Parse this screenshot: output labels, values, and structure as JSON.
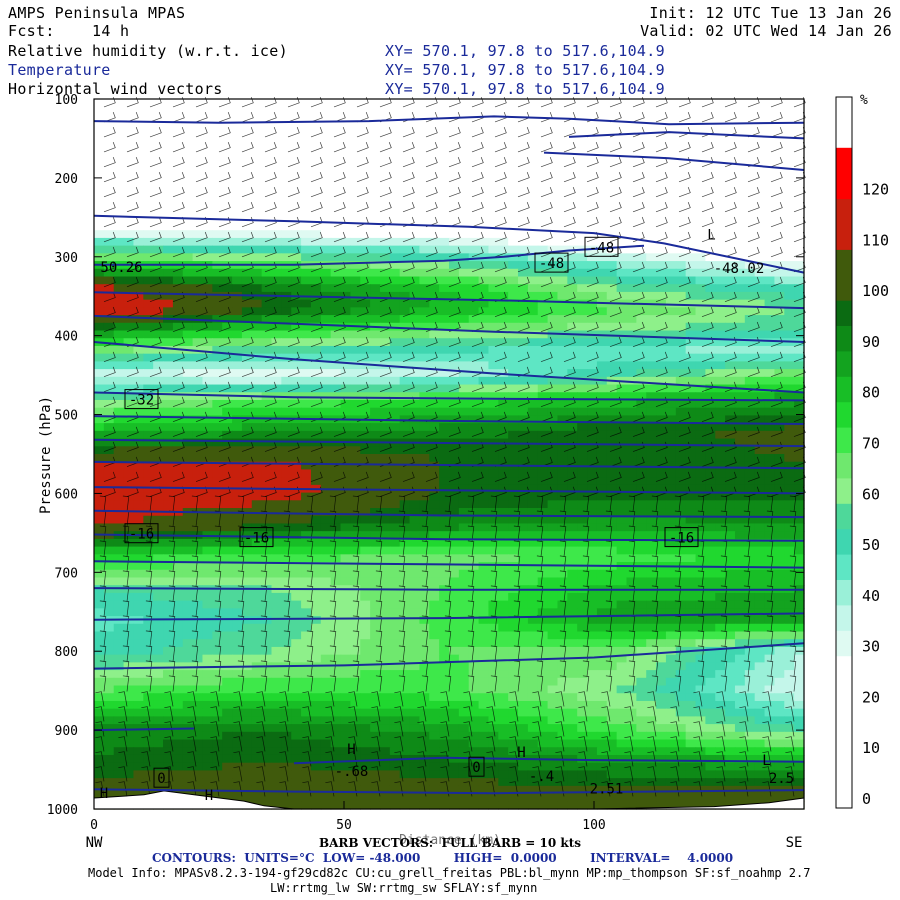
{
  "header": {
    "model": "AMPS Peninsula MPAS",
    "fcst_label": "Fcst:",
    "fcst_value": "14 h",
    "init": "Init: 12 UTC Tue 13 Jan 26",
    "valid": "Valid: 02 UTC Wed 14 Jan 26",
    "fields": [
      {
        "name": "Relative humidity (w.r.t. ice)",
        "xy": "XY= 570.1, 97.8 to 517.6,104.9"
      },
      {
        "name": "Temperature",
        "xy": "XY= 570.1, 97.8 to 517.6,104.9"
      },
      {
        "name": "Horizontal wind vectors",
        "xy": "XY= 570.1, 97.8 to 517.6,104.9"
      }
    ]
  },
  "colors": {
    "temperature_contour": "#1a2a9a",
    "barb": "#000000",
    "terrain": "#ffffff"
  },
  "chart_data": {
    "type": "heatmap",
    "ylabel": "Pressure (hPa)",
    "xlabel": "Distance (km)",
    "xlim": [
      0,
      142
    ],
    "ylim": [
      1000,
      100
    ],
    "x_ticks": [
      "0",
      "50",
      "100"
    ],
    "x_end_labels": {
      "left": "NW",
      "right": "SE"
    },
    "y_ticks": [
      "100",
      "200",
      "300",
      "400",
      "500",
      "600",
      "700",
      "800",
      "900",
      "1000"
    ],
    "colorbar": {
      "unit": "%",
      "labels": [
        "120",
        "110",
        "100",
        "90",
        "80",
        "70",
        "60",
        "50",
        "40",
        "30",
        "20",
        "10",
        "0"
      ],
      "bins": [
        {
          "range": [
            120,
            130
          ],
          "color": "#ff0000"
        },
        {
          "range": [
            110,
            120
          ],
          "color": "#c8200d"
        },
        {
          "range": [
            100,
            110
          ],
          "color": "#405a0c"
        },
        {
          "range": [
            95,
            100
          ],
          "color": "#0b6b12"
        },
        {
          "range": [
            90,
            95
          ],
          "color": "#0e8a17"
        },
        {
          "range": [
            85,
            90
          ],
          "color": "#13a31f"
        },
        {
          "range": [
            80,
            85
          ],
          "color": "#18be26"
        },
        {
          "range": [
            75,
            80
          ],
          "color": "#20d82f"
        },
        {
          "range": [
            70,
            75
          ],
          "color": "#3ee84a"
        },
        {
          "range": [
            65,
            70
          ],
          "color": "#6fe86e"
        },
        {
          "range": [
            60,
            65
          ],
          "color": "#8ef08a"
        },
        {
          "range": [
            55,
            60
          ],
          "color": "#4ed89a"
        },
        {
          "range": [
            50,
            55
          ],
          "color": "#3fd6b0"
        },
        {
          "range": [
            45,
            50
          ],
          "color": "#5ee6c4"
        },
        {
          "range": [
            40,
            45
          ],
          "color": "#9af0d8"
        },
        {
          "range": [
            35,
            40
          ],
          "color": "#c4f6ea"
        },
        {
          "range": [
            30,
            35
          ],
          "color": "#dffaf2"
        },
        {
          "range": [
            0,
            30
          ],
          "color": "#ffffff"
        }
      ]
    },
    "rh_layers": [
      {
        "p": 100,
        "rh": [
          0,
          0,
          0,
          0,
          0
        ]
      },
      {
        "p": 240,
        "rh": [
          0,
          0,
          0,
          0,
          0
        ]
      },
      {
        "p": 280,
        "rh": [
          45,
          40,
          35,
          20,
          5
        ]
      },
      {
        "p": 310,
        "rh": [
          80,
          72,
          60,
          45,
          30
        ]
      },
      {
        "p": 340,
        "rh": [
          112,
          95,
          80,
          60,
          50
        ]
      },
      {
        "p": 365,
        "rh": [
          122,
          100,
          85,
          70,
          60
        ]
      },
      {
        "p": 390,
        "rh": [
          95,
          80,
          70,
          62,
          55
        ]
      },
      {
        "p": 420,
        "rh": [
          65,
          55,
          50,
          45,
          42
        ]
      },
      {
        "p": 450,
        "rh": [
          35,
          30,
          38,
          55,
          70
        ]
      },
      {
        "p": 480,
        "rh": [
          60,
          70,
          75,
          82,
          88
        ]
      },
      {
        "p": 520,
        "rh": [
          82,
          88,
          92,
          98,
          102
        ]
      },
      {
        "p": 560,
        "rh": [
          110,
          112,
          100,
          98,
          100
        ]
      },
      {
        "p": 600,
        "rh": [
          118,
          114,
          100,
          96,
          96
        ]
      },
      {
        "p": 640,
        "rh": [
          112,
          100,
          92,
          88,
          90
        ]
      },
      {
        "p": 680,
        "rh": [
          78,
          72,
          68,
          72,
          78
        ]
      },
      {
        "p": 720,
        "rh": [
          55,
          60,
          70,
          82,
          85
        ]
      },
      {
        "p": 760,
        "rh": [
          48,
          55,
          72,
          88,
          90
        ]
      },
      {
        "p": 800,
        "rh": [
          52,
          60,
          70,
          68,
          40
        ]
      },
      {
        "p": 850,
        "rh": [
          70,
          75,
          72,
          60,
          35
        ]
      },
      {
        "p": 900,
        "rh": [
          92,
          95,
          88,
          72,
          55
        ]
      },
      {
        "p": 940,
        "rh": [
          96,
          100,
          96,
          90,
          85
        ]
      },
      {
        "p": 980,
        "rh": [
          104,
          106,
          104,
          102,
          104
        ]
      },
      {
        "p": 1000,
        "rh": [
          100,
          100,
          100,
          100,
          100
        ]
      }
    ],
    "rh_x": [
      0,
      35,
      70,
      105,
      142
    ],
    "temperature_contours": [
      {
        "points": [
          [
            0,
            128
          ],
          [
            25,
            130
          ],
          [
            55,
            128
          ],
          [
            80,
            122
          ],
          [
            95,
            125
          ],
          [
            115,
            132
          ],
          [
            142,
            130
          ]
        ]
      },
      {
        "points": [
          [
            95,
            148
          ],
          [
            115,
            142
          ],
          [
            142,
            150
          ]
        ]
      },
      {
        "points": [
          [
            90,
            168
          ],
          [
            115,
            175
          ],
          [
            142,
            190
          ]
        ]
      },
      {
        "points": [
          [
            0,
            248
          ],
          [
            40,
            255
          ],
          [
            75,
            262
          ],
          [
            100,
            270
          ],
          [
            114,
            283
          ],
          [
            142,
            320
          ]
        ]
      },
      {
        "points": [
          [
            0,
            310
          ],
          [
            40,
            310
          ],
          [
            70,
            305
          ],
          [
            82,
            300
          ],
          [
            95,
            292
          ],
          [
            110,
            286
          ]
        ]
      },
      {
        "points": [
          [
            0,
            345
          ],
          [
            40,
            350
          ],
          [
            80,
            355
          ],
          [
            142,
            365
          ]
        ]
      },
      {
        "points": [
          [
            0,
            375
          ],
          [
            40,
            385
          ],
          [
            80,
            395
          ],
          [
            142,
            408
          ]
        ]
      },
      {
        "points": [
          [
            0,
            408
          ],
          [
            40,
            430
          ],
          [
            80,
            448
          ],
          [
            142,
            472
          ]
        ]
      },
      {
        "points": [
          [
            0,
            472
          ],
          [
            40,
            478
          ],
          [
            80,
            480
          ],
          [
            142,
            482
          ]
        ]
      },
      {
        "points": [
          [
            0,
            502
          ],
          [
            70,
            508
          ],
          [
            142,
            512
          ]
        ]
      },
      {
        "points": [
          [
            0,
            532
          ],
          [
            70,
            536
          ],
          [
            142,
            540
          ]
        ]
      },
      {
        "points": [
          [
            0,
            560
          ],
          [
            70,
            564
          ],
          [
            142,
            568
          ]
        ]
      },
      {
        "points": [
          [
            0,
            592
          ],
          [
            70,
            596
          ],
          [
            142,
            600
          ]
        ]
      },
      {
        "points": [
          [
            0,
            622
          ],
          [
            70,
            628
          ],
          [
            142,
            630
          ]
        ]
      },
      {
        "points": [
          [
            0,
            652
          ],
          [
            70,
            658
          ],
          [
            142,
            660
          ]
        ]
      },
      {
        "points": [
          [
            0,
            686
          ],
          [
            70,
            690
          ],
          [
            142,
            694
          ]
        ]
      },
      {
        "points": [
          [
            0,
            720
          ],
          [
            70,
            722
          ],
          [
            142,
            722
          ]
        ]
      },
      {
        "points": [
          [
            0,
            760
          ],
          [
            70,
            758
          ],
          [
            142,
            752
          ]
        ]
      },
      {
        "points": [
          [
            0,
            822
          ],
          [
            50,
            818
          ],
          [
            100,
            808
          ],
          [
            142,
            790
          ]
        ]
      },
      {
        "points": [
          [
            0,
            900
          ],
          [
            20,
            898
          ]
        ]
      },
      {
        "points": [
          [
            40,
            942
          ],
          [
            70,
            935
          ],
          [
            100,
            938
          ],
          [
            142,
            940
          ]
        ]
      },
      {
        "points": [
          [
            0,
            975
          ],
          [
            40,
            978
          ],
          [
            80,
            980
          ],
          [
            142,
            976
          ]
        ]
      }
    ],
    "contour_labels": [
      {
        "text": "-48",
        "x": 91.5,
        "p": 308
      },
      {
        "text": "-48",
        "x": 101.5,
        "p": 288
      },
      {
        "text": "-48.02",
        "x": 129,
        "p": 314,
        "boxed": false
      },
      {
        "text": "50.26",
        "x": 5.5,
        "p": 313,
        "boxed": false
      },
      {
        "text": "-32",
        "x": 9.5,
        "p": 481
      },
      {
        "text": "-16",
        "x": 9.5,
        "p": 651
      },
      {
        "text": "-16",
        "x": 32.5,
        "p": 656
      },
      {
        "text": "-16",
        "x": 117.5,
        "p": 656
      },
      {
        "text": "0",
        "x": 13.5,
        "p": 961
      },
      {
        "text": "0",
        "x": 76.5,
        "p": 947
      },
      {
        "text": "-.68",
        "x": 51.5,
        "p": 952,
        "boxed": false
      },
      {
        "text": "-.4",
        "x": 89.5,
        "p": 958,
        "boxed": false
      },
      {
        "text": "2.51",
        "x": 102.5,
        "p": 974,
        "boxed": false
      },
      {
        "text": "2.5",
        "x": 137.5,
        "p": 961,
        "boxed": false
      },
      {
        "text": "H",
        "x": 2,
        "p": 980,
        "boxed": false
      },
      {
        "text": "H",
        "x": 23,
        "p": 982,
        "boxed": false
      },
      {
        "text": "H",
        "x": 85.5,
        "p": 928,
        "boxed": false
      },
      {
        "text": "H",
        "x": 51.5,
        "p": 924,
        "boxed": false
      },
      {
        "text": "L",
        "x": 134.5,
        "p": 938,
        "boxed": false
      },
      {
        "text": "L",
        "x": 123.5,
        "p": 272,
        "boxed": false
      }
    ],
    "terrain": [
      [
        0,
        1000
      ],
      [
        0,
        986
      ],
      [
        10,
        982
      ],
      [
        14,
        977
      ],
      [
        20,
        982
      ],
      [
        30,
        990
      ],
      [
        34,
        996
      ],
      [
        40,
        1000
      ],
      [
        142,
        1000
      ],
      [
        142,
        986
      ],
      [
        135,
        992
      ],
      [
        124,
        997
      ],
      [
        100,
        1000
      ]
    ]
  },
  "footer": {
    "line1": "BARB VECTORS:  FULL BARB = 10 kts",
    "line2": "CONTOURS:  UNITS=°C  LOW= -48.000        HIGH=  0.0000        INTERVAL=    4.0000",
    "line3": "Model Info: MPASv8.2.3-194-gf29cd82c CU:cu_grell_freitas PBL:bl_mynn MP:mp_thompson SF:sf_noahmp 2.7",
    "line4": "LW:rrtmg_lw SW:rrtmg_sw SFLAY:sf_mynn"
  }
}
